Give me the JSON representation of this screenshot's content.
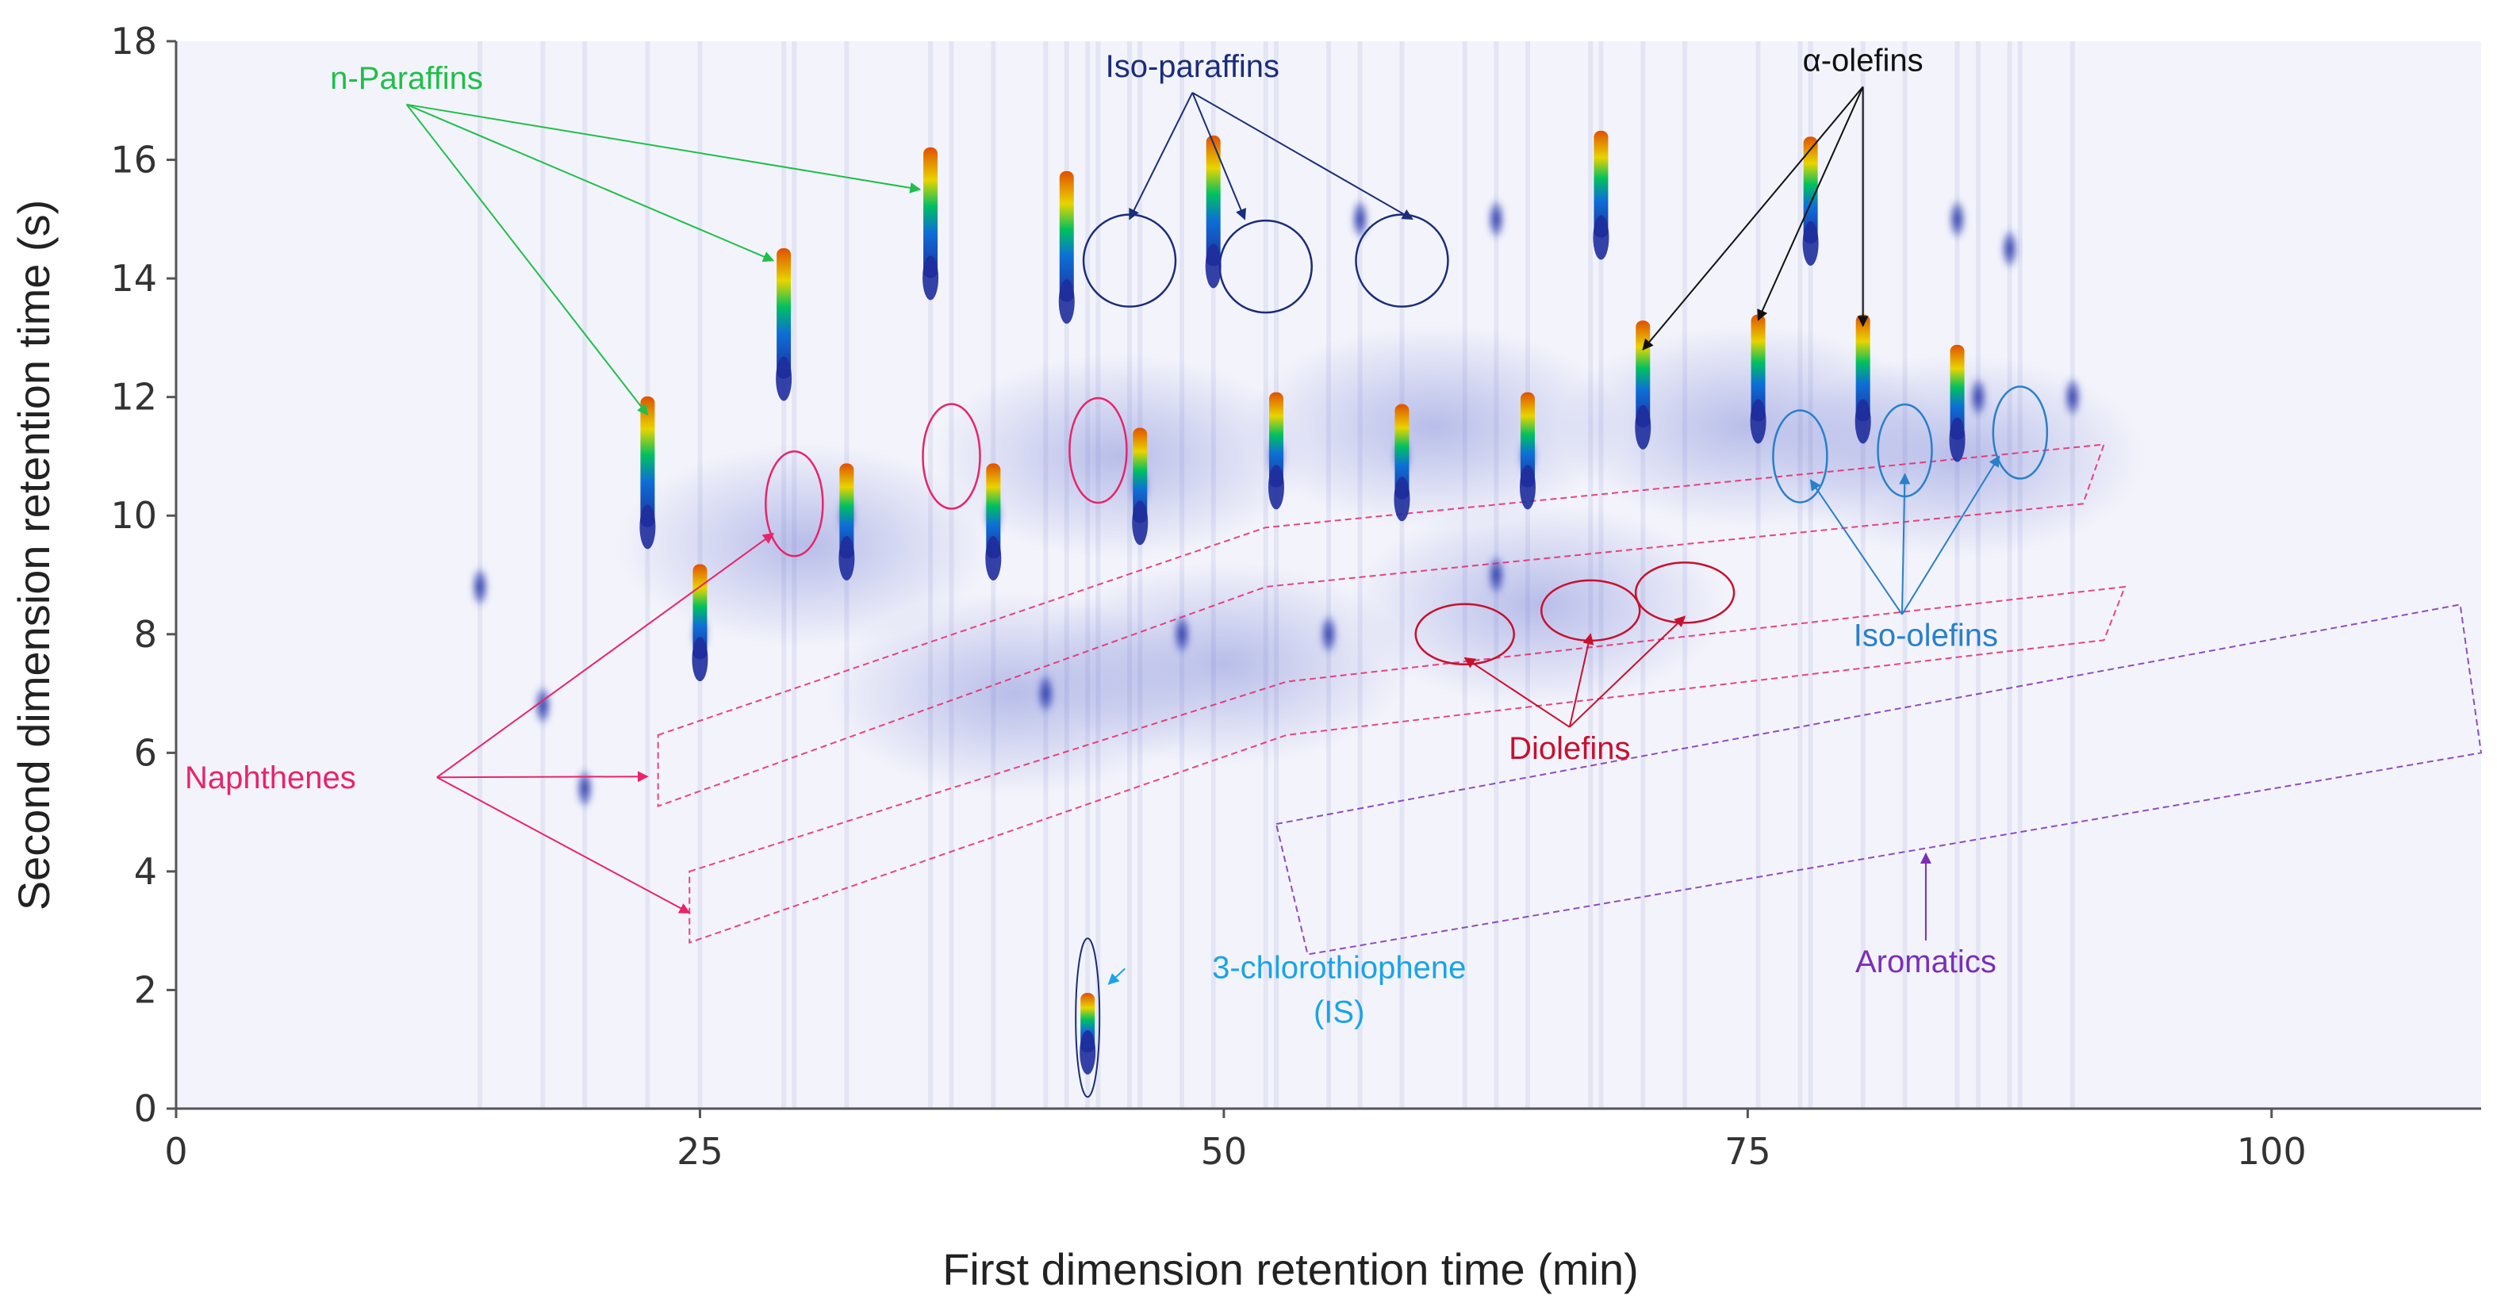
{
  "chart_data": {
    "type": "scatter",
    "subtype": "GCxGC contour plot",
    "title": "",
    "xlabel": "First dimension retention time (min)",
    "ylabel": "Second dimension retention time (s)",
    "xlim": [
      0,
      110
    ],
    "ylim": [
      0,
      18
    ],
    "x_ticks": [
      0,
      25,
      50,
      75,
      100
    ],
    "y_ticks": [
      0,
      2,
      4,
      6,
      8,
      10,
      12,
      14,
      16,
      18
    ],
    "grid": false,
    "colors": {
      "background": "#f3f4fb",
      "peak_low": "#1f2d9c",
      "peak_mid": "#00c060",
      "peak_high": "#e8d400",
      "peak_max": "#e05000",
      "n_paraffins": "#1fbf4a",
      "iso_paraffins": "#1a2d7a",
      "alpha_olefins": "#111111",
      "iso_olefins": "#2a7fc9",
      "naphthenes": "#e8246a",
      "diolefins": "#c8102e",
      "aromatics": "#7b2fb5",
      "internal_standard": "#1aa3e8"
    },
    "series": [
      {
        "name": "n-Paraffins",
        "points": [
          [
            22.5,
            10.8
          ],
          [
            29.0,
            13.3
          ],
          [
            36.0,
            15.0
          ],
          [
            42.5,
            14.6
          ],
          [
            49.5,
            15.2
          ]
        ]
      },
      {
        "name": "α-olefins",
        "points": [
          [
            68.0,
            15.5
          ],
          [
            70.0,
            12.3
          ],
          [
            75.5,
            12.4
          ],
          [
            78.0,
            15.4
          ],
          [
            80.5,
            12.4
          ]
        ]
      },
      {
        "name": "Iso-paraffins",
        "points": [
          [
            45.5,
            14.3
          ],
          [
            52.0,
            14.2
          ],
          [
            58.5,
            14.3
          ]
        ]
      },
      {
        "name": "Iso-olefins",
        "points": [
          [
            77.5,
            11.0
          ],
          [
            82.5,
            11.1
          ],
          [
            88.0,
            11.4
          ]
        ]
      },
      {
        "name": "Naphthenes",
        "points": [
          [
            29.5,
            10.2
          ],
          [
            37.0,
            11.0
          ],
          [
            44.0,
            11.1
          ]
        ]
      },
      {
        "name": "Diolefins",
        "points": [
          [
            61.5,
            8.0
          ],
          [
            67.5,
            8.4
          ],
          [
            72.0,
            8.7
          ]
        ]
      },
      {
        "name": "3-chlorothiophene (IS)",
        "points": [
          [
            43.5,
            1.4
          ]
        ]
      }
    ],
    "other_peaks": [
      [
        25.0,
        8.0
      ],
      [
        32.0,
        10.0
      ],
      [
        39.0,
        10.0
      ],
      [
        46.0,
        10.5
      ],
      [
        52.5,
        11.0
      ],
      [
        58.5,
        11.0
      ],
      [
        64.5,
        11.0
      ],
      [
        56.5,
        15.0
      ],
      [
        63.0,
        15.0
      ],
      [
        85.0,
        15.0
      ],
      [
        87.5,
        14.5
      ],
      [
        90.5,
        12.0
      ],
      [
        86.0,
        12.0
      ],
      [
        19.5,
        5.4
      ],
      [
        17.5,
        6.8
      ],
      [
        14.5,
        8.8
      ],
      [
        41.5,
        7.0
      ],
      [
        48.0,
        8.0
      ],
      [
        55.0,
        8.0
      ],
      [
        63.0,
        9.0
      ]
    ],
    "annotations": [
      {
        "label": "n-Paraffins",
        "text_at": [
          11.0,
          17.2
        ],
        "arrows_to": [
          [
            22.5,
            11.7
          ],
          [
            28.5,
            14.3
          ],
          [
            35.5,
            15.5
          ]
        ]
      },
      {
        "label": "Iso-paraffins",
        "text_at": [
          48.5,
          17.4
        ],
        "arrows_to": [
          [
            45.5,
            15.0
          ],
          [
            51.0,
            15.0
          ],
          [
            59.0,
            15.0
          ]
        ]
      },
      {
        "label": "α-olefins",
        "text_at": [
          80.5,
          17.5
        ],
        "arrows_to": [
          [
            70.0,
            12.8
          ],
          [
            75.5,
            13.3
          ],
          [
            80.5,
            13.2
          ]
        ]
      },
      {
        "label": "Iso-olefins",
        "text_at": [
          83.5,
          7.8
        ],
        "arrows_to": [
          [
            78.0,
            10.6
          ],
          [
            82.5,
            10.7
          ],
          [
            87.0,
            11.0
          ]
        ]
      },
      {
        "label": "Naphthenes",
        "text_at": [
          4.5,
          5.4
        ],
        "arrows_to": [
          [
            28.5,
            9.7
          ],
          [
            22.5,
            5.6
          ],
          [
            24.5,
            3.3
          ]
        ]
      },
      {
        "label": "Diolefins",
        "text_at": [
          66.5,
          5.9
        ],
        "arrows_to": [
          [
            61.5,
            7.6
          ],
          [
            67.5,
            8.0
          ],
          [
            72.0,
            8.3
          ]
        ]
      },
      {
        "label": "Aromatics",
        "text_at": [
          83.5,
          2.3
        ],
        "arrows_to": [
          [
            83.5,
            4.3
          ]
        ]
      },
      {
        "label": "3-chlorothiophene",
        "label_line2": "(IS)",
        "text_at": [
          55.5,
          2.2
        ],
        "arrows_to": [
          [
            44.5,
            2.1
          ]
        ]
      }
    ]
  }
}
